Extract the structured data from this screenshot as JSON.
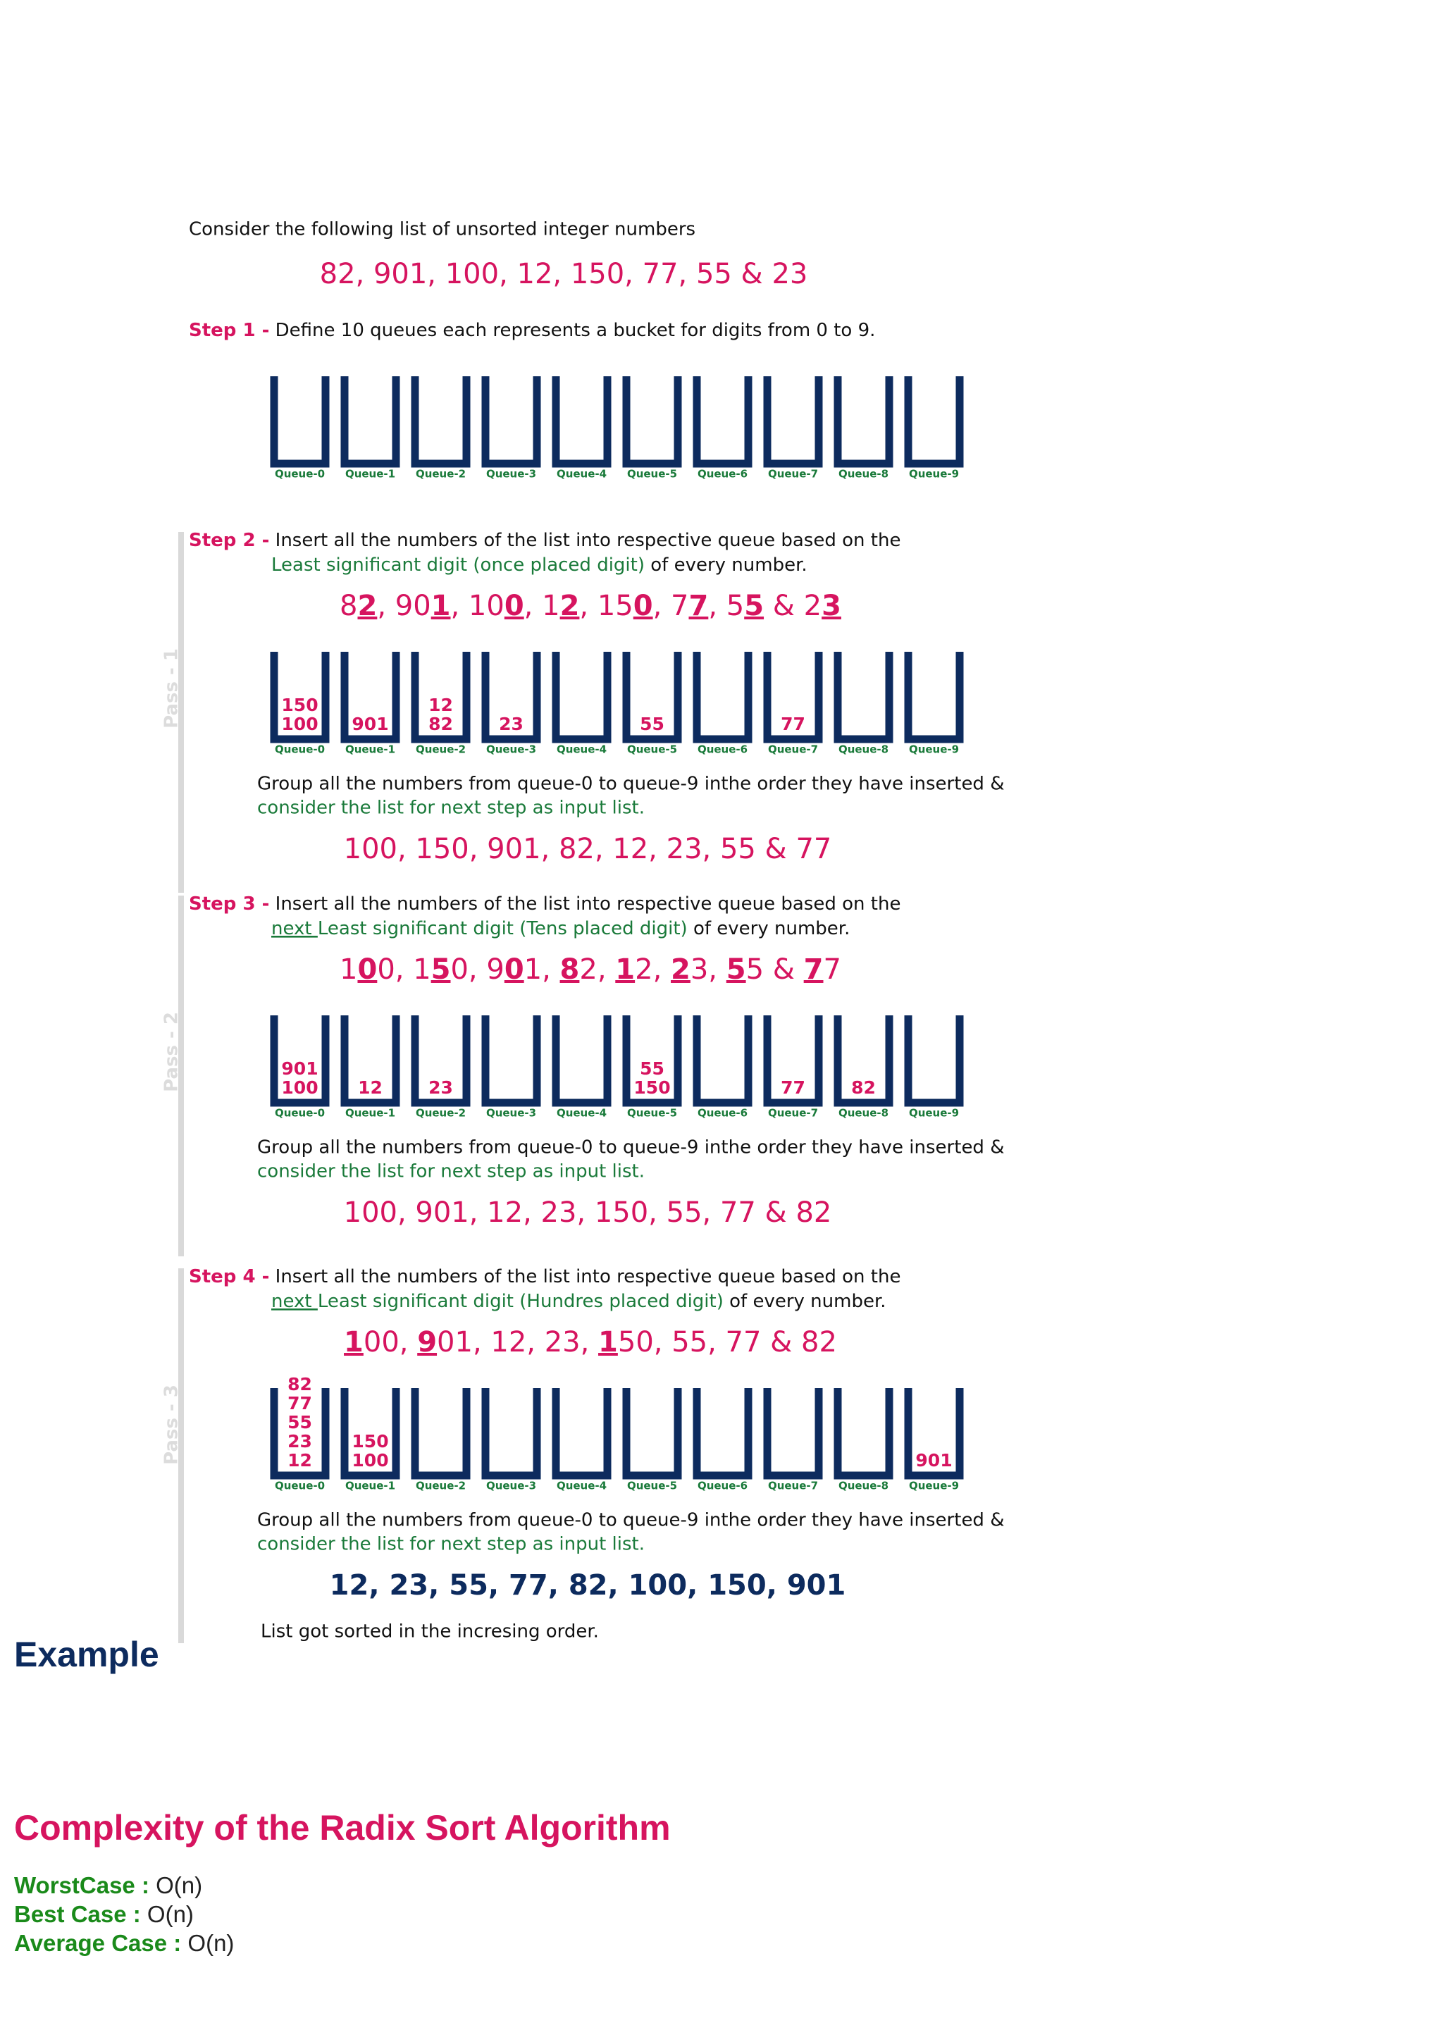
{
  "intro": "Consider the following list of unsorted integer numbers",
  "numbers": "82, 901, 100, 12, 150, 77, 55 & 23",
  "step1": {
    "label": "Step 1 -",
    "text": "Define 10 queues each represents a bucket for digits from 0 to 9."
  },
  "queue_labels": [
    "Queue-0",
    "Queue-1",
    "Queue-2",
    "Queue-3",
    "Queue-4",
    "Queue-5",
    "Queue-6",
    "Queue-7",
    "Queue-8",
    "Queue-9"
  ],
  "passes": [
    {
      "name": "Pass - 1",
      "step": "Step 2 -",
      "line1": "Insert all the numbers of the list into respective queue based on the",
      "line2_green": "Least significant digit (once placed digit)",
      "line2_rest": " of every number.",
      "digits": [
        {
          "text": "8",
          "bold": false
        },
        {
          "text": "2",
          "bold": true
        },
        {
          "text": ", 90",
          "bold": false
        },
        {
          "text": "1",
          "bold": true
        },
        {
          "text": ", 10",
          "bold": false
        },
        {
          "text": "0",
          "bold": true
        },
        {
          "text": ", 1",
          "bold": false
        },
        {
          "text": "2",
          "bold": true
        },
        {
          "text": ", 15",
          "bold": false
        },
        {
          "text": "0",
          "bold": true
        },
        {
          "text": ", 7",
          "bold": false
        },
        {
          "text": "7",
          "bold": true
        },
        {
          "text": ", 5",
          "bold": false
        },
        {
          "text": "5",
          "bold": true
        },
        {
          "text": " & 2",
          "bold": false
        },
        {
          "text": "3",
          "bold": true
        }
      ],
      "queues": [
        [
          "150",
          "100"
        ],
        [
          "901"
        ],
        [
          "12",
          "82"
        ],
        [
          "23"
        ],
        [],
        [
          "55"
        ],
        [],
        [
          "77"
        ],
        [],
        []
      ],
      "group_line1": "Group all the numbers from queue-0 to queue-9 inthe order they have inserted &",
      "group_line2": "consider the list for next step as input list.",
      "result": "100, 150, 901, 82, 12, 23, 55 & 77"
    },
    {
      "name": "Pass - 2",
      "step": "Step 3 -",
      "line1": "Insert all the numbers of the list into respective queue based on the",
      "line2_prefix": "next ",
      "line2_green": "Least significant digit (Tens placed digit)",
      "line2_rest": " of every number.",
      "digits": [
        {
          "text": "1",
          "bold": false
        },
        {
          "text": "0",
          "bold": true
        },
        {
          "text": "0, 1",
          "bold": false
        },
        {
          "text": "5",
          "bold": true
        },
        {
          "text": "0, 9",
          "bold": false
        },
        {
          "text": "0",
          "bold": true
        },
        {
          "text": "1, ",
          "bold": false
        },
        {
          "text": "8",
          "bold": true
        },
        {
          "text": "2, ",
          "bold": false
        },
        {
          "text": "1",
          "bold": true
        },
        {
          "text": "2, ",
          "bold": false
        },
        {
          "text": "2",
          "bold": true
        },
        {
          "text": "3, ",
          "bold": false
        },
        {
          "text": "5",
          "bold": true
        },
        {
          "text": "5 & ",
          "bold": false
        },
        {
          "text": "7",
          "bold": true
        },
        {
          "text": "7",
          "bold": false
        }
      ],
      "queues": [
        [
          "901",
          "100"
        ],
        [
          "12"
        ],
        [
          "23"
        ],
        [],
        [],
        [
          "55",
          "150"
        ],
        [],
        [
          "77"
        ],
        [
          "82"
        ],
        []
      ],
      "group_line1": "Group all the numbers from queue-0 to queue-9 inthe order they have inserted &",
      "group_line2": "consider the list for next step as input list.",
      "result": "100, 901, 12, 23, 150, 55, 77 & 82"
    },
    {
      "name": "Pass - 3",
      "step": "Step 4 -",
      "line1": "Insert all the numbers of the list into respective queue based on the",
      "line2_prefix": "next ",
      "line2_green": "Least significant digit (Hundres placed digit)",
      "line2_rest": " of every number.",
      "digits": [
        {
          "text": "1",
          "bold": true
        },
        {
          "text": "00, ",
          "bold": false
        },
        {
          "text": "9",
          "bold": true
        },
        {
          "text": "01, 12, 23, ",
          "bold": false
        },
        {
          "text": "1",
          "bold": true
        },
        {
          "text": "50, 55, 77 & 82",
          "bold": false
        }
      ],
      "queues": [
        [
          "82",
          "77",
          "55",
          "23",
          "12"
        ],
        [
          "150",
          "100"
        ],
        [],
        [],
        [],
        [],
        [],
        [],
        [],
        [
          "901"
        ]
      ],
      "group_line1": "Group all the numbers from queue-0 to queue-9 inthe order they have inserted &",
      "group_line2": "consider the list for next step as input list.",
      "result": "12, 23, 55, 77, 82, 100, 150, 901"
    }
  ],
  "conclusion": "List got sorted in the incresing order.",
  "example_heading": "Example",
  "complexity": {
    "title": "Complexity of the Radix Sort Algorithm",
    "rows": [
      {
        "label": "WorstCase :",
        "value": "O(n)"
      },
      {
        "label": "Best Case :",
        "value": "O(n)"
      },
      {
        "label": "Average Case :",
        "value": "O(n)"
      }
    ]
  }
}
